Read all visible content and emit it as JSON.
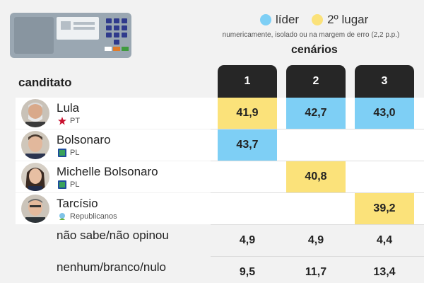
{
  "legend": {
    "leader_label": "líder",
    "second_label": "2º lugar",
    "leader_color": "#7ecff5",
    "second_color": "#fbe27a"
  },
  "note": "numericamente, isolado ou na margem de erro (2,2 p.p.)",
  "scenarios_title": "cenários",
  "candidate_column_title": "canditato",
  "chart_data": {
    "type": "table",
    "scenarios": [
      "1",
      "2",
      "3"
    ],
    "rows": [
      {
        "name": "Lula",
        "party": "PT",
        "values": [
          "41,9",
          "42,7",
          "43,0"
        ],
        "highlight": [
          "second",
          "leader",
          "leader"
        ]
      },
      {
        "name": "Bolsonaro",
        "party": "PL",
        "values": [
          "43,7",
          "",
          ""
        ],
        "highlight": [
          "leader",
          "",
          ""
        ]
      },
      {
        "name": "Michelle Bolsonaro",
        "party": "PL",
        "values": [
          "",
          "40,8",
          ""
        ],
        "highlight": [
          "",
          "second",
          ""
        ]
      },
      {
        "name": "Tarcísio",
        "party": "Republicanos",
        "values": [
          "",
          "",
          "39,2"
        ],
        "highlight": [
          "",
          "",
          "second"
        ]
      },
      {
        "name": "não sabe/não opinou",
        "party": "",
        "values": [
          "4,9",
          "4,9",
          "4,4"
        ],
        "highlight": [
          "",
          "",
          ""
        ]
      },
      {
        "name": "nenhum/branco/nulo",
        "party": "",
        "values": [
          "9,5",
          "11,7",
          "13,4"
        ],
        "highlight": [
          "",
          "",
          ""
        ]
      }
    ]
  }
}
